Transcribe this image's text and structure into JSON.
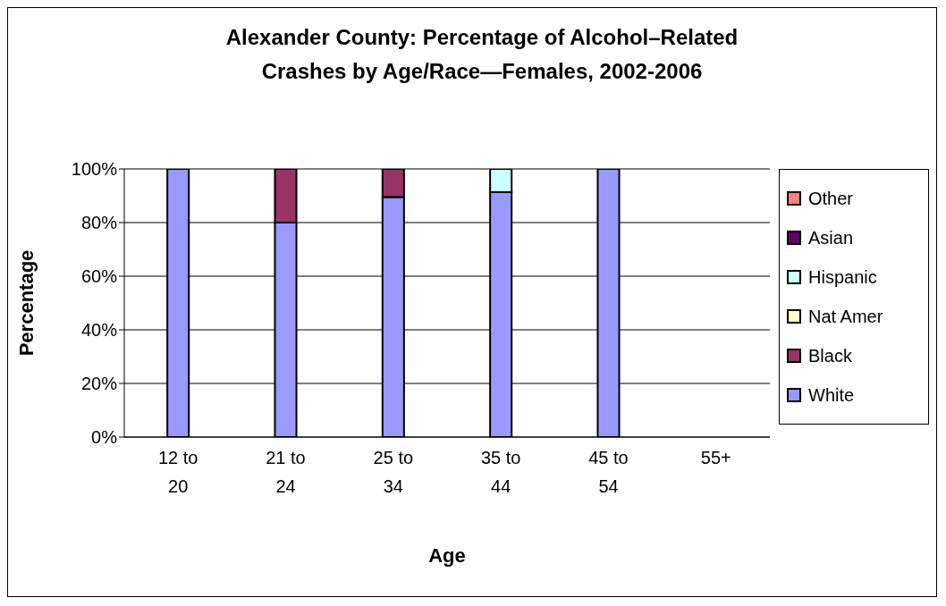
{
  "chart_data": {
    "type": "bar",
    "title": "Alexander County: Percentage of Alcohol–Related Crashes by Age/Race—Females, 2002-2006",
    "xlabel": "Age",
    "ylabel": "Percentage",
    "categories": [
      "12 to 20",
      "21 to 24",
      "25 to 34",
      "35 to 44",
      "45 to 54",
      "55+"
    ],
    "stacked": true,
    "ylim": [
      0,
      100
    ],
    "yticks": [
      {
        "value": 0,
        "label": "0%"
      },
      {
        "value": 20,
        "label": "20%"
      },
      {
        "value": 40,
        "label": "40%"
      },
      {
        "value": 60,
        "label": "60%"
      },
      {
        "value": 80,
        "label": "80%"
      },
      {
        "value": 100,
        "label": "100%"
      }
    ],
    "grid": "y",
    "legend": "right",
    "series": [
      {
        "name": "White",
        "color": "#9999ff",
        "values": [
          100,
          80,
          89.5,
          91.3,
          100,
          null
        ]
      },
      {
        "name": "Black",
        "color": "#993366",
        "values": [
          0,
          20,
          10.5,
          0,
          0,
          null
        ]
      },
      {
        "name": "Nat Amer",
        "color": "#ffffcc",
        "values": [
          0,
          0,
          0,
          0,
          0,
          null
        ]
      },
      {
        "name": "Hispanic",
        "color": "#ccffff",
        "values": [
          0,
          0,
          0,
          8.7,
          0,
          null
        ]
      },
      {
        "name": "Asian",
        "color": "#660066",
        "values": [
          0,
          0,
          0,
          0,
          0,
          null
        ]
      },
      {
        "name": "Other",
        "color": "#ff8080",
        "values": [
          0,
          0,
          0,
          0,
          0,
          null
        ]
      }
    ]
  }
}
